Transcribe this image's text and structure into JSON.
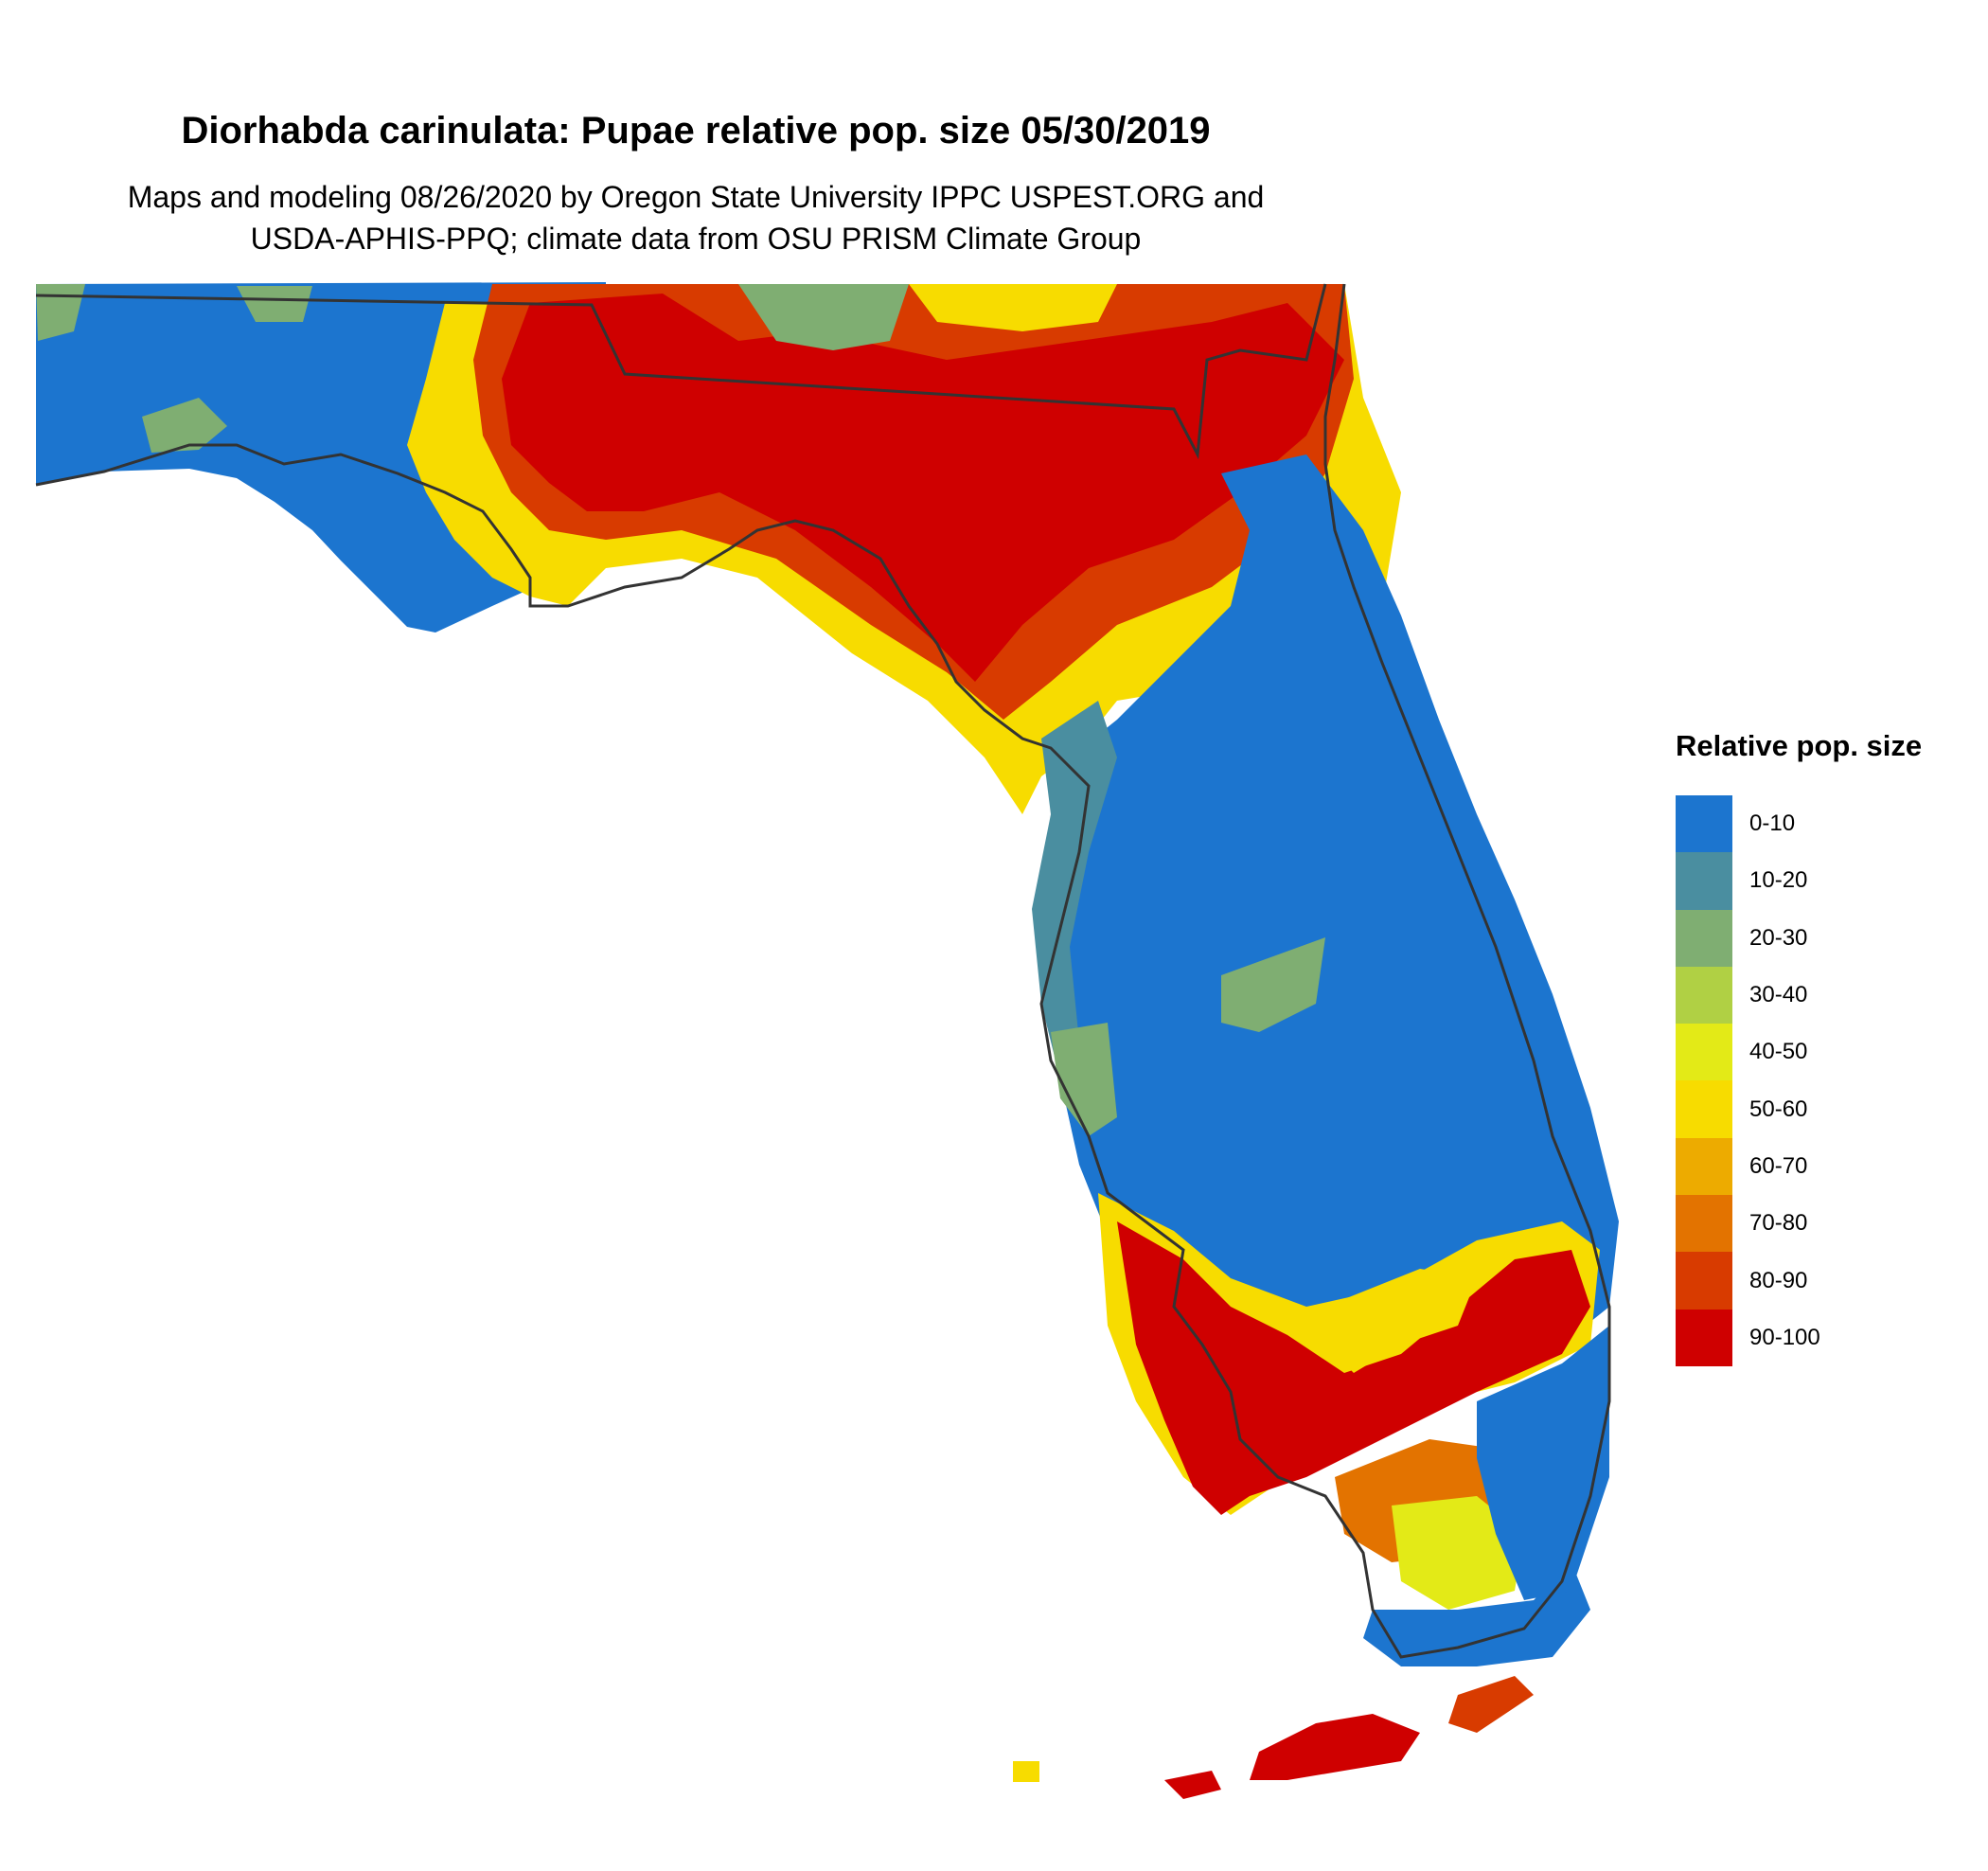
{
  "title": "Diorhabda carinulata: Pupae relative pop. size 05/30/2019",
  "subtitle": [
    "Maps and modeling 08/26/2020 by Oregon State University IPPC USPEST.ORG and",
    "USDA-APHIS-PPQ; climate data from OSU PRISM Climate Group"
  ],
  "legend": {
    "title": "Relative pop. size",
    "items": [
      {
        "label": "0-10",
        "color": "#1c75cf"
      },
      {
        "label": "10-20",
        "color": "#4a8ea0"
      },
      {
        "label": "20-30",
        "color": "#7fae72"
      },
      {
        "label": "30-40",
        "color": "#b0d044"
      },
      {
        "label": "40-50",
        "color": "#e3ea17"
      },
      {
        "label": "50-60",
        "color": "#f7dc00"
      },
      {
        "label": "60-70",
        "color": "#edab00"
      },
      {
        "label": "70-80",
        "color": "#e37300"
      },
      {
        "label": "80-90",
        "color": "#d83b00"
      },
      {
        "label": "90-100",
        "color": "#cf0000"
      }
    ]
  }
}
